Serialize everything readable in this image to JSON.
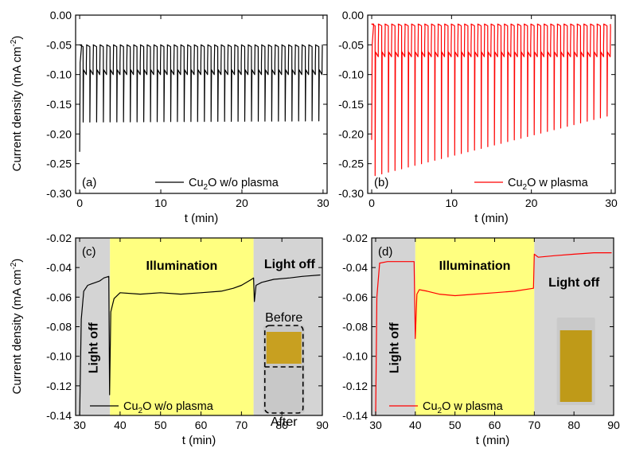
{
  "colors": {
    "black_series": "#000000",
    "red_series": "#ff0000",
    "dark_region": "#d4d4d4",
    "light_region": "#ffff80"
  },
  "shared": {
    "ylabel_main": "Current density (mA cm",
    "ylabel_sup": "-2",
    "ylabel_end": ")",
    "xlabel": "t (min)"
  },
  "chart_data": [
    {
      "id": "a",
      "type": "line",
      "panel_label": "(a)",
      "xlim": [
        -0.5,
        30.5
      ],
      "ylim": [
        -0.3,
        0.0
      ],
      "xticks": [
        0,
        10,
        20,
        30
      ],
      "yticks": [
        0.0,
        -0.05,
        -0.1,
        -0.15,
        -0.2,
        -0.25,
        -0.3
      ],
      "ytick_labels": [
        "0.00",
        "-0.05",
        "-0.10",
        "-0.15",
        "-0.20",
        "-0.25",
        "-0.30"
      ],
      "series": [
        {
          "legend_pre": "Cu",
          "legend_sub": "2",
          "legend_post": "O w/o plasma",
          "color": "#000000",
          "pattern": {
            "period_min": 0.83,
            "cycles": 36,
            "light_on": -0.05,
            "light_off": -0.1,
            "spike_on_start": -0.1,
            "spike_on_end": -0.06,
            "spike_off_start": -0.18,
            "spike_off_end": -0.178,
            "first_spike": -0.23
          }
        }
      ]
    },
    {
      "id": "b",
      "type": "line",
      "panel_label": "(b)",
      "xlim": [
        -0.5,
        30.5
      ],
      "ylim": [
        -0.3,
        0.0
      ],
      "xticks": [
        0,
        10,
        20,
        30
      ],
      "yticks": [
        0.0,
        -0.05,
        -0.1,
        -0.15,
        -0.2,
        -0.25,
        -0.3
      ],
      "ytick_labels": [
        "0.00",
        "-0.05",
        "-0.10",
        "-0.15",
        "-0.20",
        "-0.25",
        "-0.30"
      ],
      "series": [
        {
          "legend_pre": "Cu",
          "legend_sub": "2",
          "legend_post": "O w plasma",
          "color": "#ff0000",
          "pattern": {
            "period_min": 0.83,
            "cycles": 36,
            "light_on": -0.015,
            "light_off": -0.07,
            "spike_on_start": -0.07,
            "spike_on_end": -0.03,
            "spike_off_start": -0.27,
            "spike_off_end": -0.17,
            "first_spike": -0.21
          }
        }
      ]
    },
    {
      "id": "c",
      "type": "line",
      "panel_label": "(c)",
      "xlim": [
        29,
        90
      ],
      "ylim": [
        -0.14,
        -0.02
      ],
      "xticks": [
        30,
        40,
        50,
        60,
        70,
        80,
        90
      ],
      "yticks": [
        -0.02,
        -0.04,
        -0.06,
        -0.08,
        -0.1,
        -0.12,
        -0.14
      ],
      "ytick_labels": [
        "-0.02",
        "-0.04",
        "-0.06",
        "-0.08",
        "-0.10",
        "-0.12",
        "-0.14"
      ],
      "regions": [
        {
          "x0": 29,
          "x1": 37.5,
          "kind": "dark",
          "label": "Light off",
          "rotated": true
        },
        {
          "x0": 37.5,
          "x1": 73,
          "kind": "light",
          "label": "Illumination",
          "rotated": false
        },
        {
          "x0": 73,
          "x1": 90,
          "kind": "dark",
          "label": "Light off",
          "rotated": false
        }
      ],
      "series": [
        {
          "legend_pre": "Cu",
          "legend_sub": "2",
          "legend_post": "O w/o plasma",
          "color": "#000000",
          "points": [
            [
              30,
              -0.14
            ],
            [
              30.4,
              -0.075
            ],
            [
              31,
              -0.056
            ],
            [
              32,
              -0.052
            ],
            [
              33,
              -0.051
            ],
            [
              34,
              -0.05
            ],
            [
              35,
              -0.049
            ],
            [
              36,
              -0.047
            ],
            [
              37.2,
              -0.046
            ],
            [
              37.4,
              -0.126
            ],
            [
              37.7,
              -0.07
            ],
            [
              38.5,
              -0.061
            ],
            [
              40,
              -0.057
            ],
            [
              45,
              -0.058
            ],
            [
              50,
              -0.057
            ],
            [
              55,
              -0.058
            ],
            [
              60,
              -0.057
            ],
            [
              65,
              -0.056
            ],
            [
              68,
              -0.054
            ],
            [
              70,
              -0.052
            ],
            [
              72.5,
              -0.048
            ],
            [
              73,
              -0.047
            ],
            [
              73.2,
              -0.063
            ],
            [
              73.6,
              -0.052
            ],
            [
              75,
              -0.05
            ],
            [
              78,
              -0.048
            ],
            [
              82,
              -0.047
            ],
            [
              85,
              -0.046
            ],
            [
              89.5,
              -0.045
            ]
          ]
        }
      ],
      "annotations": [
        "Before",
        "After"
      ]
    },
    {
      "id": "d",
      "type": "line",
      "panel_label": "(d)",
      "xlim": [
        29,
        90
      ],
      "ylim": [
        -0.14,
        -0.02
      ],
      "xticks": [
        30,
        40,
        50,
        60,
        70,
        80,
        90
      ],
      "yticks": [
        -0.02,
        -0.04,
        -0.06,
        -0.08,
        -0.1,
        -0.12,
        -0.14
      ],
      "ytick_labels": [
        "-0.02",
        "-0.04",
        "-0.06",
        "-0.08",
        "-0.10",
        "-0.12",
        "-0.14"
      ],
      "regions": [
        {
          "x0": 29,
          "x1": 40,
          "kind": "dark",
          "label": "Light off",
          "rotated": true
        },
        {
          "x0": 40,
          "x1": 70,
          "kind": "light",
          "label": "Illumination",
          "rotated": false
        },
        {
          "x0": 70,
          "x1": 90,
          "kind": "dark",
          "label": "Light off",
          "rotated": false
        }
      ],
      "series": [
        {
          "legend_pre": "Cu",
          "legend_sub": "2",
          "legend_post": "O w plasma",
          "color": "#ff0000",
          "points": [
            [
              30,
              -0.14
            ],
            [
              30.3,
              -0.06
            ],
            [
              31,
              -0.037
            ],
            [
              33,
              -0.036
            ],
            [
              35,
              -0.036
            ],
            [
              37,
              -0.036
            ],
            [
              39.7,
              -0.036
            ],
            [
              40,
              -0.088
            ],
            [
              40.4,
              -0.058
            ],
            [
              41,
              -0.055
            ],
            [
              43,
              -0.056
            ],
            [
              46,
              -0.058
            ],
            [
              50,
              -0.059
            ],
            [
              55,
              -0.058
            ],
            [
              60,
              -0.057
            ],
            [
              65,
              -0.056
            ],
            [
              69.8,
              -0.054
            ],
            [
              70,
              -0.031
            ],
            [
              71,
              -0.033
            ],
            [
              75,
              -0.032
            ],
            [
              80,
              -0.031
            ],
            [
              85,
              -0.03
            ],
            [
              89.5,
              -0.03
            ]
          ]
        }
      ]
    }
  ]
}
